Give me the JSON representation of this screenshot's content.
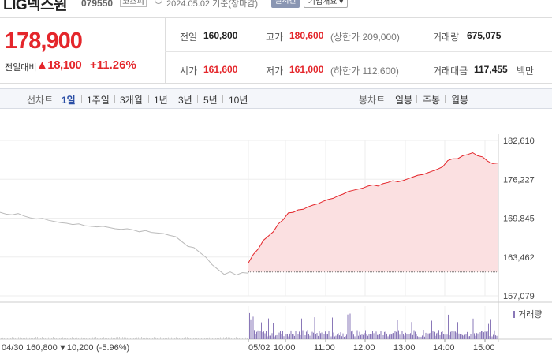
{
  "header": {
    "stock_name": "LIG넥스원",
    "stock_code": "079550",
    "market": "코스피",
    "date_text": "2024.05.02  기준(장마감)",
    "realtime_label": "실시간",
    "corp_info_label": "기업개요 ▾"
  },
  "summary": {
    "current_price": "178,900",
    "change_label": "전일대비",
    "change_amount": "▲18,100",
    "change_rate": "+11.26%",
    "prev_close_label": "전일",
    "prev_close": "160,800",
    "high_label": "고가",
    "high": "180,600",
    "upper_limit": "(상한가 209,000)",
    "volume_label": "거래량",
    "volume": "675,075",
    "open_label": "시가",
    "open": "161,600",
    "low_label": "저가",
    "low": "161,000",
    "lower_limit": "(하한가 112,600)",
    "amount_label": "거래대금",
    "amount": "117,455",
    "amount_unit": "백만"
  },
  "toolbar": {
    "line_label": "선차트",
    "periods": [
      "1일",
      "1주일",
      "3개월",
      "1년",
      "3년",
      "5년",
      "10년"
    ],
    "active_period": "1일",
    "candle_label": "봉차트",
    "candles": [
      "일봉",
      "주봉",
      "월봉"
    ]
  },
  "colors": {
    "up": "#e4262b",
    "down": "#2a4ea5",
    "prev_line": "#bbbbbb",
    "volume": "#8a78b8"
  },
  "chart_data": {
    "type": "line",
    "y_ticks": [
      "182,610",
      "176,227",
      "169,845",
      "163,462",
      "157,079"
    ],
    "ylim": [
      157079,
      182610
    ],
    "x_ticks": [
      "05/02",
      "10:00",
      "11:00",
      "12:00",
      "13:00",
      "14:00",
      "15:00"
    ],
    "volume_label": "거래량",
    "prev_day_footer": {
      "date": "04/30",
      "close": "160,800",
      "change": "▼10,200",
      "rate": "(-5.96%)"
    },
    "prev_day_series": [
      170800,
      170500,
      170400,
      170600,
      170200,
      169900,
      169700,
      169800,
      169500,
      169300,
      169100,
      169000,
      168800,
      168900,
      168600,
      168500,
      168400,
      168500,
      168300,
      168100,
      168000,
      168100,
      167900,
      167600,
      167800,
      167500,
      167400,
      167300,
      167000,
      166800,
      166000,
      165200,
      165000,
      164200,
      163400,
      162200,
      161400,
      160600,
      161000,
      160500,
      160900,
      160800
    ],
    "today_series": [
      162500,
      163900,
      164800,
      166200,
      166900,
      167600,
      168900,
      169600,
      170700,
      170800,
      171200,
      171300,
      171700,
      172000,
      172200,
      172600,
      172900,
      173100,
      173500,
      173800,
      174200,
      174400,
      174600,
      174800,
      175100,
      175300,
      175100,
      175500,
      175700,
      176000,
      175800,
      176000,
      176300,
      176600,
      176900,
      177000,
      177300,
      177600,
      177900,
      178300,
      179300,
      179600,
      179600,
      180100,
      180300,
      180600,
      180100,
      179900,
      179200,
      178800,
      178900
    ],
    "today_base": 161000
  }
}
